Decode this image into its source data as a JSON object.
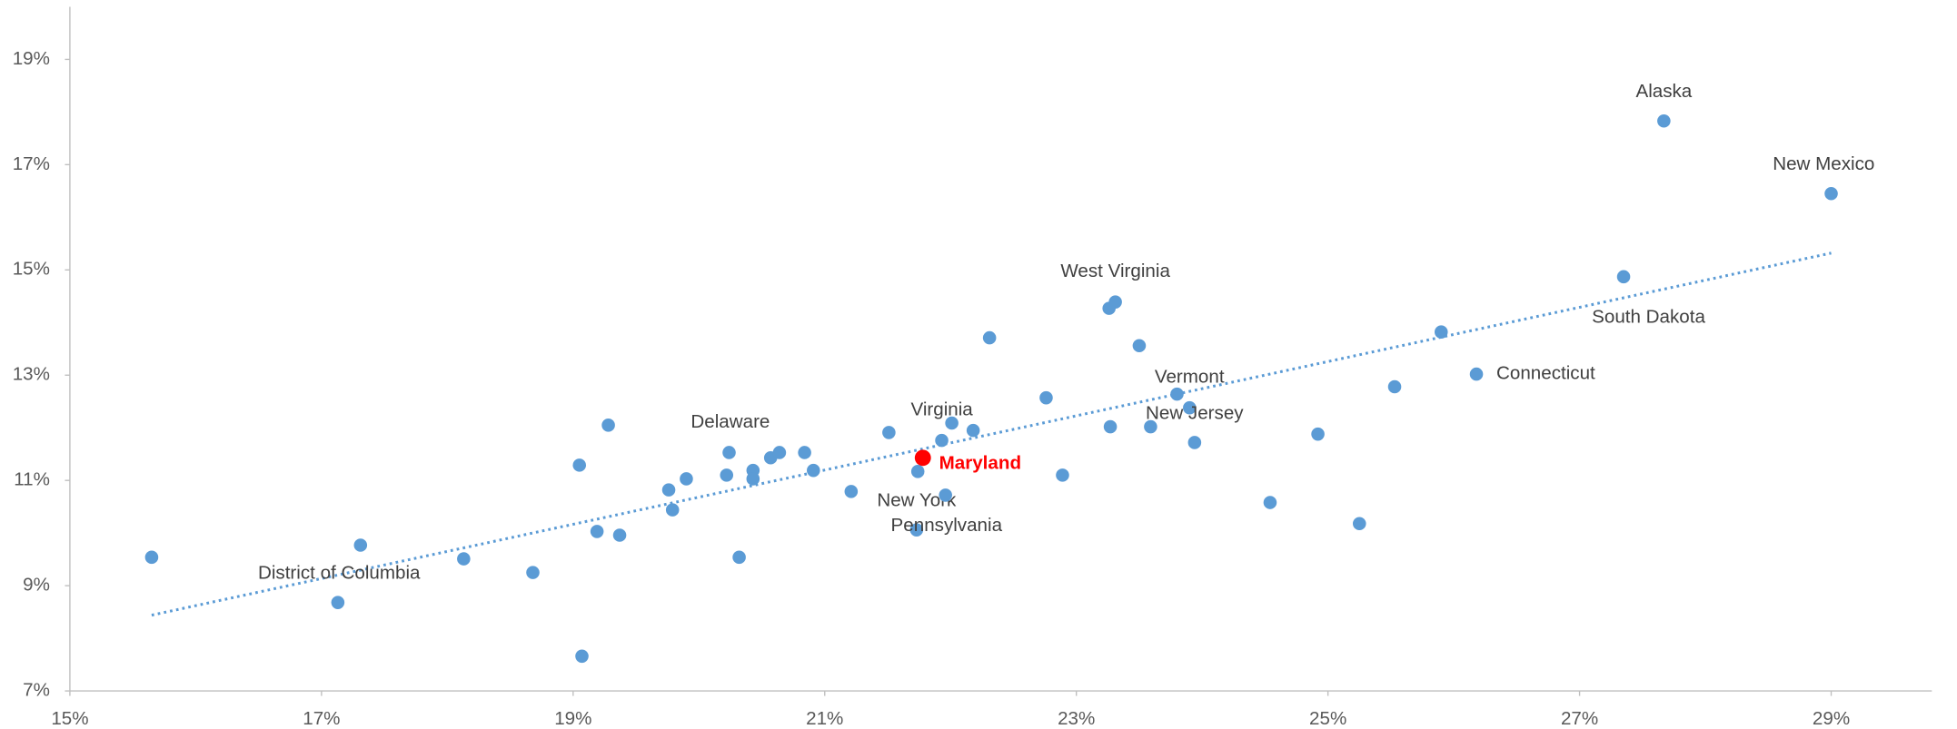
{
  "chart_data": {
    "type": "scatter",
    "x": [
      15.65,
      17.13,
      17.31,
      18.13,
      18.68,
      19.07,
      19.05,
      19.28,
      19.19,
      19.37,
      19.76,
      19.79,
      19.9,
      20.24,
      20.22,
      20.32,
      20.43,
      20.43,
      20.57,
      20.64,
      20.84,
      20.91,
      21.21,
      21.51,
      21.74,
      21.73,
      21.93,
      22.01,
      21.96,
      22.18,
      22.31,
      22.76,
      22.89,
      23.26,
      23.31,
      23.27,
      23.5,
      23.59,
      23.8,
      23.9,
      23.94,
      24.54,
      24.92,
      25.25,
      25.53,
      25.9,
      26.18,
      27.35,
      27.67,
      29.0
    ],
    "values": [
      9.54,
      8.68,
      9.77,
      9.51,
      9.25,
      7.66,
      11.29,
      12.05,
      10.03,
      9.96,
      10.82,
      10.44,
      11.03,
      11.53,
      11.1,
      9.54,
      11.19,
      11.03,
      11.43,
      11.53,
      11.53,
      11.19,
      10.79,
      11.91,
      11.17,
      10.06,
      11.76,
      12.09,
      10.72,
      11.95,
      13.71,
      12.57,
      11.1,
      14.27,
      14.39,
      12.02,
      13.56,
      12.02,
      12.64,
      12.38,
      11.72,
      10.58,
      11.88,
      10.18,
      12.78,
      13.82,
      13.02,
      14.87,
      17.83,
      16.45
    ],
    "labels": [
      null,
      "District of Columbia",
      null,
      null,
      null,
      null,
      null,
      null,
      null,
      null,
      null,
      null,
      null,
      "Delaware",
      null,
      null,
      null,
      null,
      null,
      null,
      null,
      null,
      null,
      null,
      "New York",
      "Pennsylvania",
      null,
      "Virginia",
      null,
      null,
      null,
      null,
      null,
      null,
      "West Virginia",
      null,
      null,
      null,
      "Vermont",
      "New Jersey",
      null,
      null,
      null,
      null,
      null,
      null,
      "Connecticut",
      "South Dakota",
      "Alaska",
      "New Mexico"
    ],
    "color": "#5b9bd5",
    "highlight": {
      "x": 21.78,
      "value": 11.43,
      "label": "Maryland",
      "color": "#ff0000"
    },
    "trendline": {
      "x": [
        15.65,
        29.0
      ],
      "values": [
        8.44,
        15.32
      ],
      "color": "#5b9bd5"
    },
    "xlim": [
      15,
      29.8
    ],
    "xticks": [
      {
        "value": 15,
        "label": "15%"
      },
      {
        "value": 17,
        "label": "17%"
      },
      {
        "value": 19,
        "label": "19%"
      },
      {
        "value": 21,
        "label": "21%"
      },
      {
        "value": 23,
        "label": "23%"
      },
      {
        "value": 25,
        "label": "25%"
      },
      {
        "value": 27,
        "label": "27%"
      },
      {
        "value": 29,
        "label": "29%"
      }
    ],
    "ylim": [
      7,
      20
    ],
    "yticks": [
      {
        "value": 7,
        "label": "7%"
      },
      {
        "value": 9,
        "label": "9%"
      },
      {
        "value": 11,
        "label": "11%"
      },
      {
        "value": 13,
        "label": "13%"
      },
      {
        "value": 15,
        "label": "15%"
      },
      {
        "value": 17,
        "label": "17%"
      },
      {
        "value": 19,
        "label": "19%"
      }
    ],
    "grid": false
  }
}
